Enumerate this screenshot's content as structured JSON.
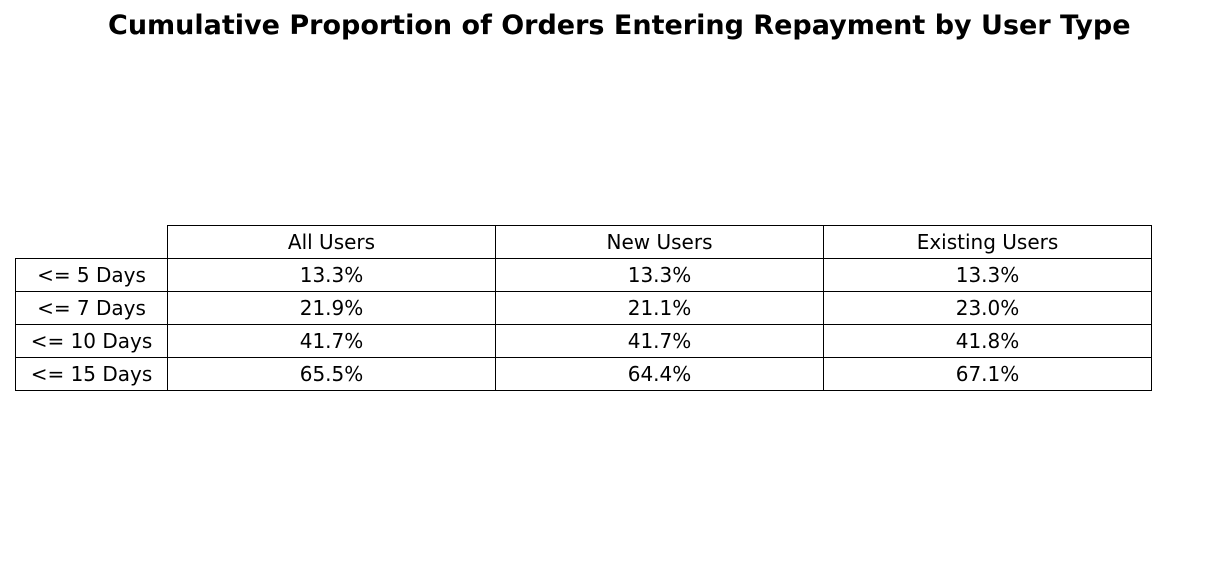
{
  "chart_data": {
    "type": "table",
    "title": "Cumulative Proportion of Orders Entering Repayment by User Type",
    "columns": [
      "All Users",
      "New Users",
      "Existing Users"
    ],
    "rows": [
      {
        "label": "<= 5 Days",
        "values": [
          "13.3%",
          "13.3%",
          "13.3%"
        ]
      },
      {
        "label": "<= 7 Days",
        "values": [
          "21.9%",
          "21.1%",
          "23.0%"
        ]
      },
      {
        "label": "<= 10 Days",
        "values": [
          "41.7%",
          "41.7%",
          "41.8%"
        ]
      },
      {
        "label": "<= 15 Days",
        "values": [
          "65.5%",
          "64.4%",
          "67.1%"
        ]
      }
    ]
  }
}
